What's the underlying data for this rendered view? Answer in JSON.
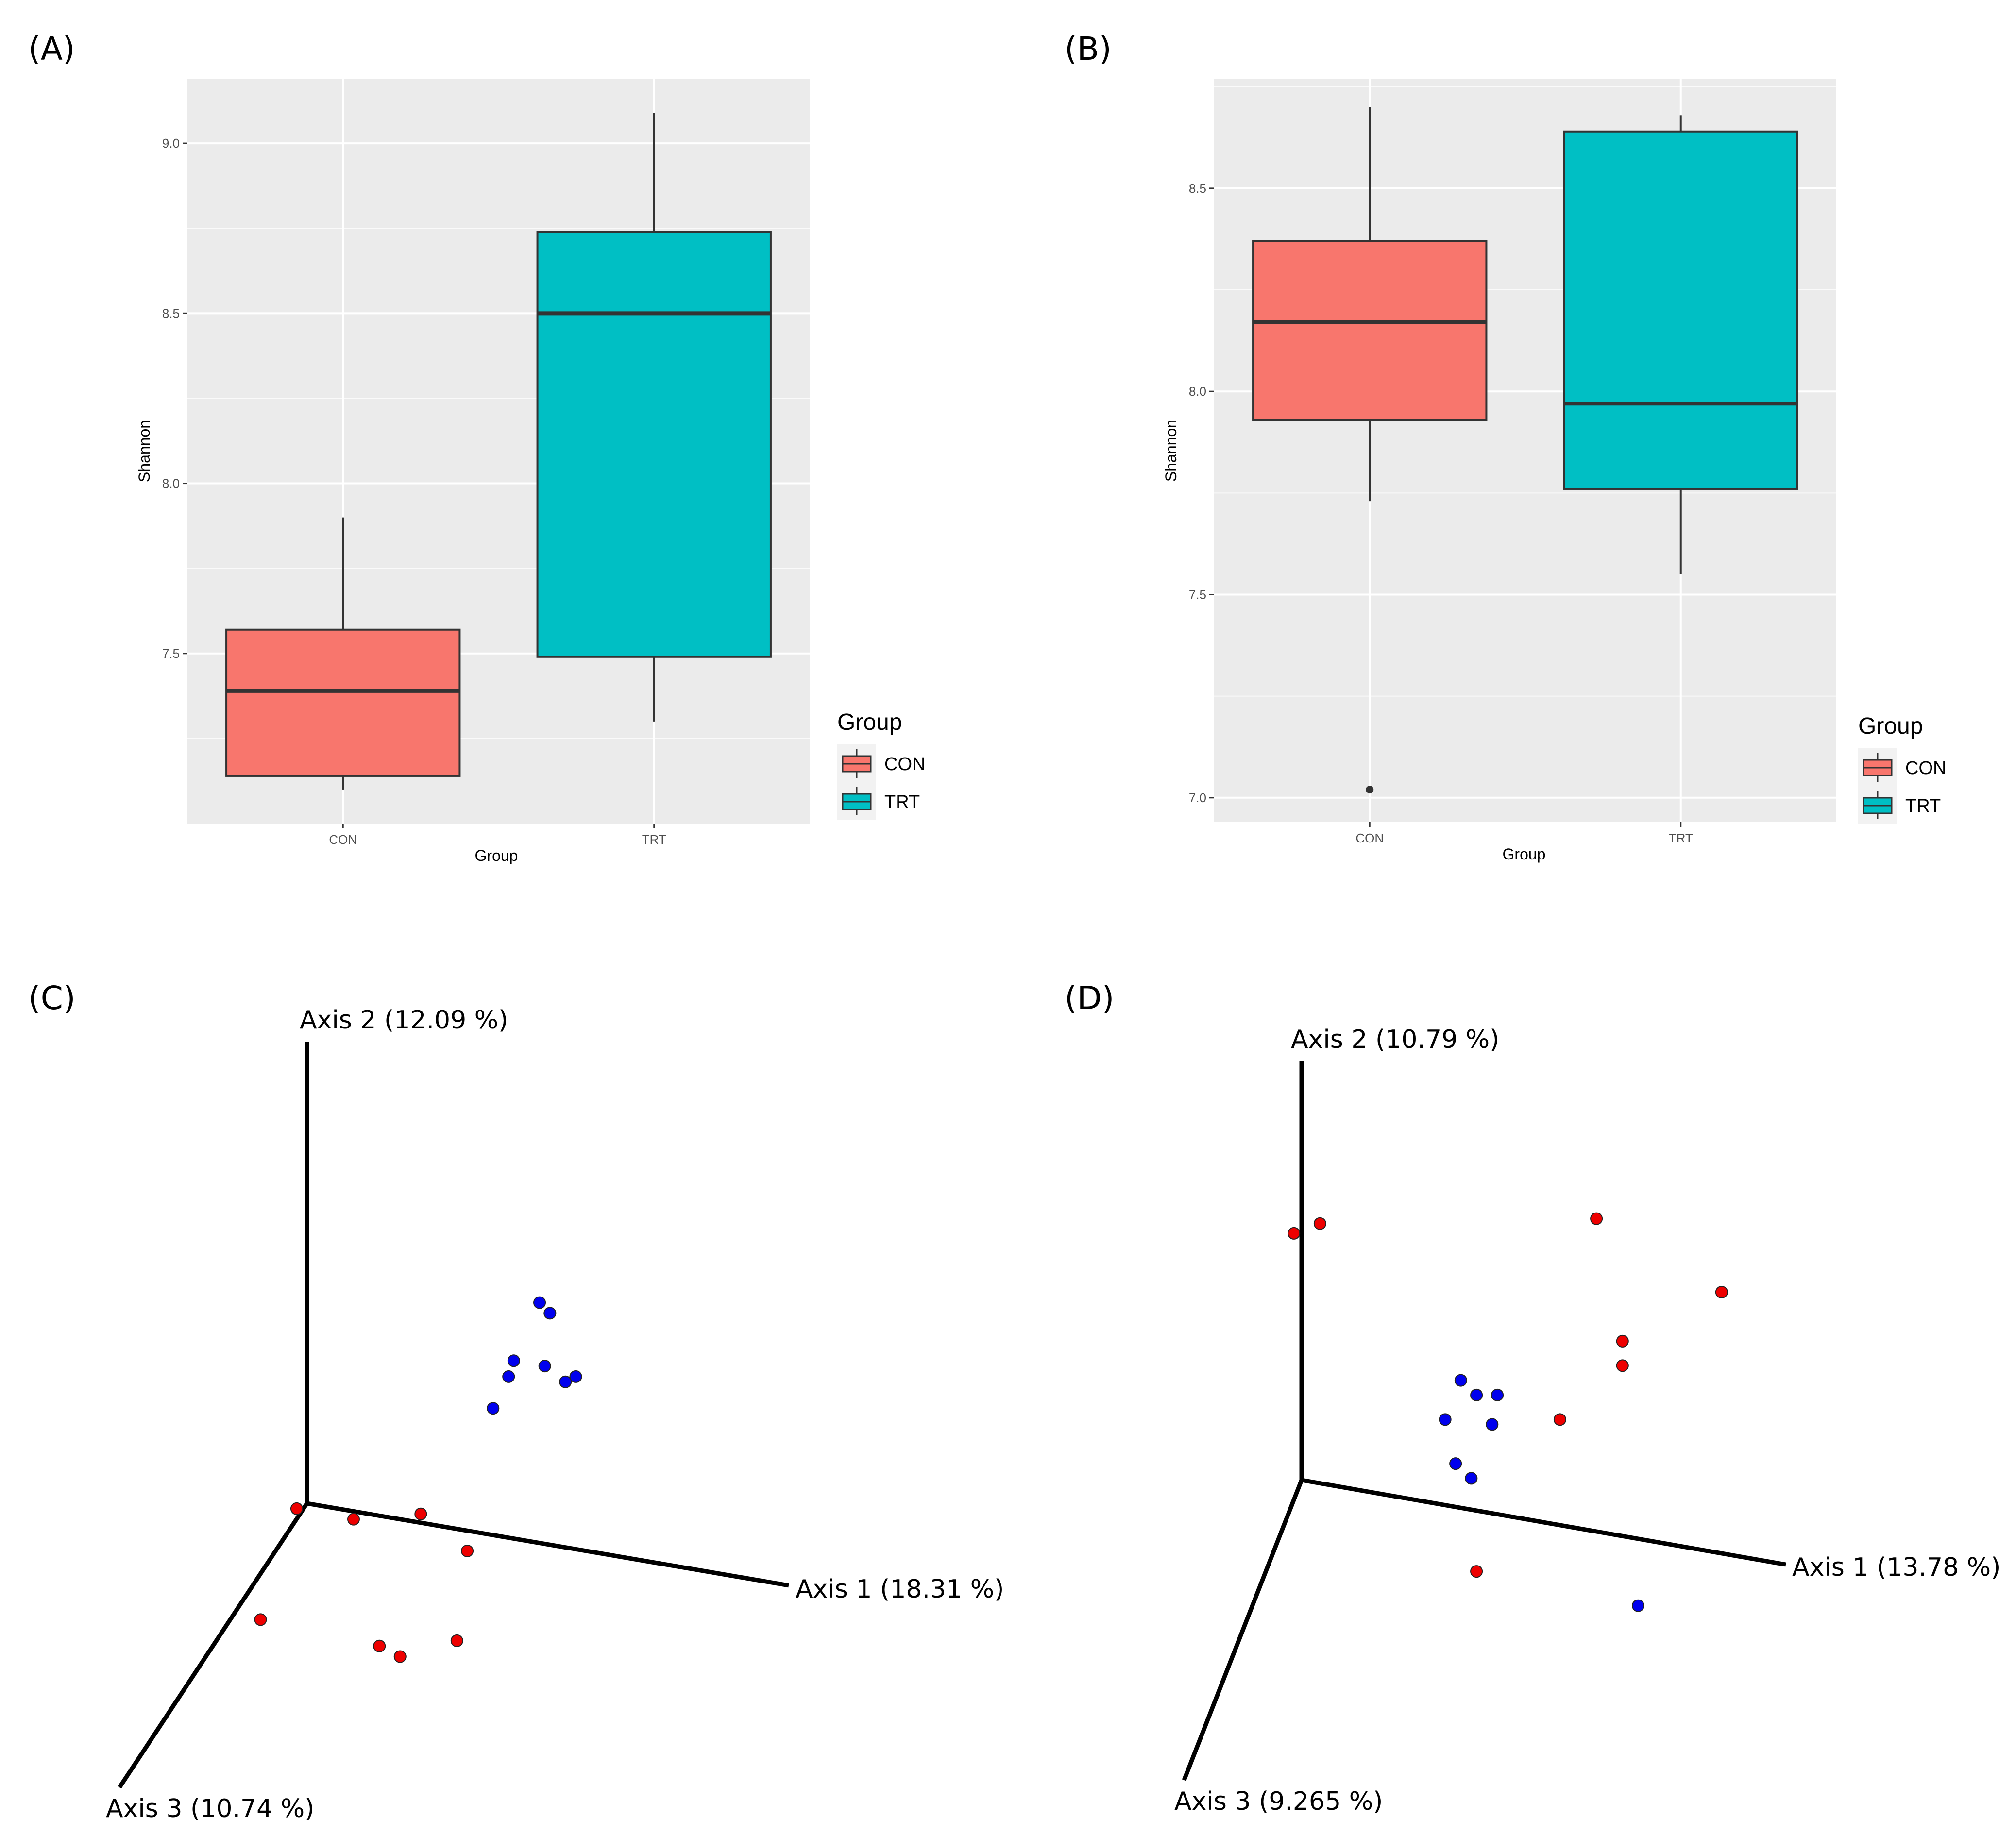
{
  "panels": {
    "a": {
      "label": "(A)"
    },
    "b": {
      "label": "(B)"
    },
    "c": {
      "label": "(C)"
    },
    "d": {
      "label": "(D)"
    }
  },
  "legend": {
    "title": "Group",
    "items": [
      {
        "label": "CON",
        "color": "#F8766D"
      },
      {
        "label": "TRT",
        "color": "#00BFC4"
      }
    ]
  },
  "chart_data": [
    {
      "panel": "(A)",
      "type": "box",
      "xlabel": "Group",
      "ylabel": "Shannon",
      "categories": [
        "CON",
        "TRT"
      ],
      "yticks": [
        7.5,
        8.0,
        8.5,
        9.0
      ],
      "ylim": [
        7.0,
        9.19
      ],
      "boxes": [
        {
          "group": "CON",
          "whisker_low": 7.1,
          "q1": 7.14,
          "median": 7.39,
          "q3": 7.57,
          "whisker_high": 7.9,
          "outliers": []
        },
        {
          "group": "TRT",
          "whisker_low": 7.3,
          "q1": 7.49,
          "median": 8.5,
          "q3": 8.74,
          "whisker_high": 9.09,
          "outliers": []
        }
      ],
      "grid": true,
      "legend_position": "right"
    },
    {
      "panel": "(B)",
      "type": "box",
      "xlabel": "Group",
      "ylabel": "Shannon",
      "categories": [
        "CON",
        "TRT"
      ],
      "yticks": [
        7.0,
        7.5,
        8.0,
        8.5
      ],
      "ylim": [
        6.94,
        8.77
      ],
      "boxes": [
        {
          "group": "CON",
          "whisker_low": 7.73,
          "q1": 7.93,
          "median": 8.17,
          "q3": 8.37,
          "whisker_high": 8.7,
          "outliers": [
            7.02
          ]
        },
        {
          "group": "TRT",
          "whisker_low": 7.55,
          "q1": 7.76,
          "median": 7.97,
          "q3": 8.64,
          "whisker_high": 8.68,
          "outliers": []
        }
      ],
      "grid": true,
      "legend_position": "right"
    },
    {
      "panel": "(C)",
      "type": "scatter",
      "projection": "3D PCoA",
      "axes": [
        "Axis 1 (18.31 %)",
        "Axis 2 (12.09 %)",
        "Axis 3 (10.74 %)"
      ],
      "series": [
        {
          "color": "#0000ee",
          "points": [
            [
              0.68,
              0.66
            ],
            [
              0.52,
              0.6
            ],
            [
              0.61,
              0.8
            ],
            [
              0.63,
              0.78
            ],
            [
              0.55,
              0.66
            ],
            [
              0.56,
              0.69
            ],
            [
              0.62,
              0.68
            ],
            [
              0.66,
              0.65
            ]
          ]
        },
        {
          "color": "#ee0000",
          "points": [
            [
              0.14,
              0.41
            ],
            [
              0.45,
              0.16
            ],
            [
              0.3,
              0.15
            ],
            [
              0.34,
              0.13
            ],
            [
              0.47,
              0.33
            ],
            [
              0.07,
              0.2
            ],
            [
              0.38,
              0.4
            ],
            [
              0.25,
              0.39
            ]
          ]
        }
      ]
    },
    {
      "panel": "(D)",
      "type": "scatter",
      "projection": "3D PCoA",
      "axes": [
        "Axis 1 (13.78 %)",
        "Axis 2 (10.79 %)",
        "Axis 3 (9.265 %)"
      ],
      "series": [
        {
          "color": "#0000ee",
          "points": [
            [
              0.42,
              0.57
            ],
            [
              0.46,
              0.57
            ],
            [
              0.39,
              0.6
            ],
            [
              0.36,
              0.52
            ],
            [
              0.45,
              0.51
            ],
            [
              0.38,
              0.43
            ],
            [
              0.41,
              0.4
            ],
            [
              0.73,
              0.14
            ]
          ]
        },
        {
          "color": "#ee0000",
          "points": [
            [
              0.07,
              0.9
            ],
            [
              0.12,
              0.92
            ],
            [
              0.65,
              0.93
            ],
            [
              0.89,
              0.78
            ],
            [
              0.7,
              0.68
            ],
            [
              0.7,
              0.63
            ],
            [
              0.58,
              0.52
            ],
            [
              0.42,
              0.21
            ]
          ]
        }
      ]
    }
  ]
}
